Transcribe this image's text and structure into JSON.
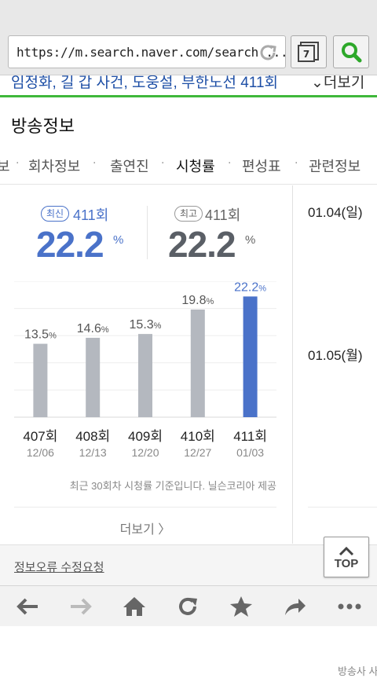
{
  "browser": {
    "url": "https://m.search.naver.com/search....",
    "tab_count": "7"
  },
  "headline": {
    "text": "임정화, 길 갑 사건, 도웅설, 부한노선 411회",
    "more": "더보기"
  },
  "section_title": "방송정보",
  "tabs": [
    {
      "label": "보"
    },
    {
      "label": "회차정보"
    },
    {
      "label": "출연진"
    },
    {
      "label": "시청률"
    },
    {
      "label": "편성표"
    },
    {
      "label": "관련정보"
    }
  ],
  "ratings": {
    "latest": {
      "badge": "최신",
      "episode": "411회",
      "value": "22.2",
      "unit": "%"
    },
    "highest": {
      "badge": "최고",
      "episode": "411회",
      "value": "22.2",
      "unit": "%"
    }
  },
  "chart_data": {
    "type": "bar",
    "categories": [
      "407회",
      "408회",
      "409회",
      "410회",
      "411회"
    ],
    "dates": [
      "12/06",
      "12/13",
      "12/20",
      "12/27",
      "01/03"
    ],
    "values": [
      13.5,
      14.6,
      15.3,
      19.8,
      22.2
    ],
    "value_unit": "%",
    "highlight_index": 4,
    "ylim": [
      0,
      25
    ],
    "colors": {
      "normal": "#b4b8bf",
      "highlight": "#4a72c9"
    }
  },
  "note": "최근 30회차 시청률 기준입니다. 닐슨코리아 제공",
  "more_label": "더보기",
  "side": {
    "dates": [
      "01.04(일)",
      "01.05(월)"
    ],
    "note": "방송사 사"
  },
  "report_link": "정보오류 수정요청",
  "top_button": "TOP",
  "colors": {
    "accent_blue": "#4a72c9",
    "green": "#3fb83a",
    "link_blue": "#1e4fa6"
  }
}
